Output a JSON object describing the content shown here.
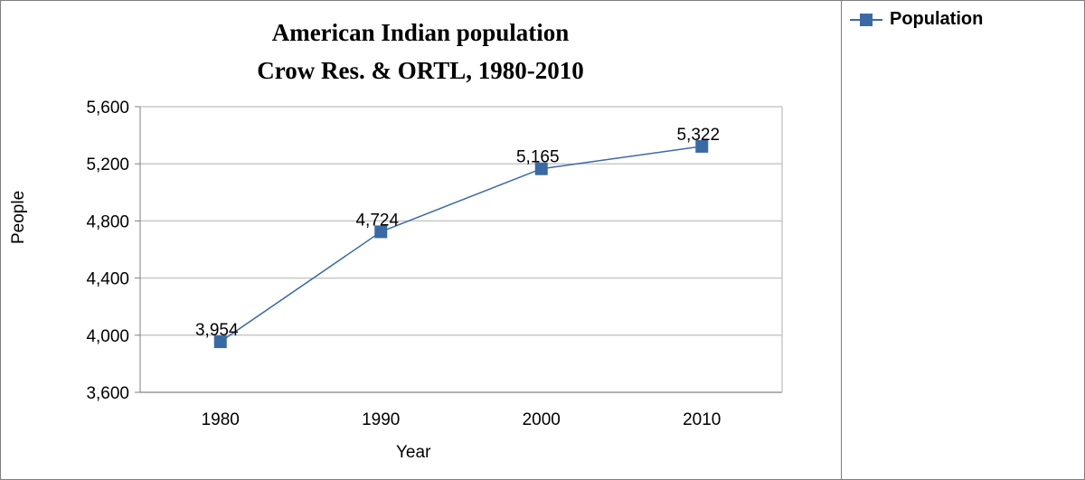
{
  "chart_data": {
    "type": "line",
    "title": "American Indian population",
    "subtitle": "Crow Res. & ORTL, 1980-2010",
    "xlabel": "Year",
    "ylabel": "People",
    "categories": [
      "1980",
      "1990",
      "2000",
      "2010"
    ],
    "series": [
      {
        "name": "Population",
        "values": [
          3954,
          4724,
          5165,
          5322
        ],
        "color": "#3a6aa5"
      }
    ],
    "data_labels": [
      "3,954",
      "4,724",
      "5,165",
      "5,322"
    ],
    "ylim": [
      3600,
      5600
    ],
    "yticks": [
      3600,
      4000,
      4400,
      4800,
      5200,
      5600
    ],
    "ytick_labels": [
      "3,600",
      "4,000",
      "4,400",
      "4,800",
      "5,200",
      "5,600"
    ],
    "grid": "horizontal",
    "legend": "right"
  }
}
